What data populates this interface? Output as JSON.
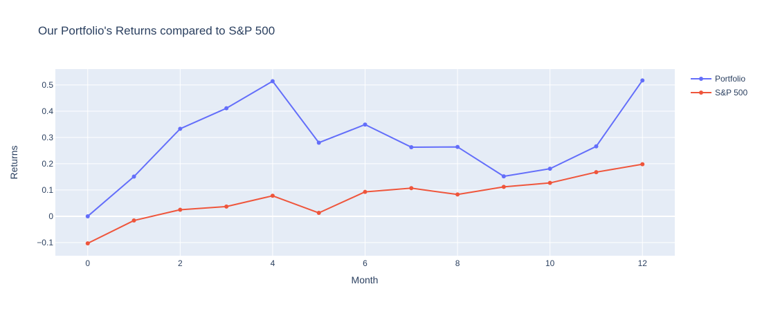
{
  "chart_data": {
    "type": "line",
    "title": "Our Portfolio's Returns compared to S&P 500",
    "xlabel": "Month",
    "ylabel": "Returns",
    "x": [
      0,
      1,
      2,
      3,
      4,
      5,
      6,
      7,
      8,
      9,
      10,
      11,
      12
    ],
    "xlim": [
      -0.7,
      12.7
    ],
    "ylim": [
      -0.15,
      0.56
    ],
    "xticks": [
      0,
      2,
      4,
      6,
      8,
      10,
      12
    ],
    "yticks": [
      -0.1,
      0,
      0.1,
      0.2,
      0.3,
      0.4,
      0.5
    ],
    "ytick_labels": [
      "−0.1",
      "0",
      "0.1",
      "0.2",
      "0.3",
      "0.4",
      "0.5"
    ],
    "grid": true,
    "legend_position": "top-right",
    "plot_bg": "#e5ecf6",
    "series": [
      {
        "name": "Portfolio",
        "color": "#636efa",
        "values": [
          0.0,
          0.151,
          0.333,
          0.411,
          0.514,
          0.28,
          0.349,
          0.263,
          0.264,
          0.152,
          0.181,
          0.266,
          0.517
        ]
      },
      {
        "name": "S&P 500",
        "color": "#ef553b",
        "values": [
          -0.103,
          -0.016,
          0.025,
          0.037,
          0.078,
          0.013,
          0.093,
          0.107,
          0.083,
          0.112,
          0.127,
          0.168,
          0.198
        ]
      }
    ]
  }
}
